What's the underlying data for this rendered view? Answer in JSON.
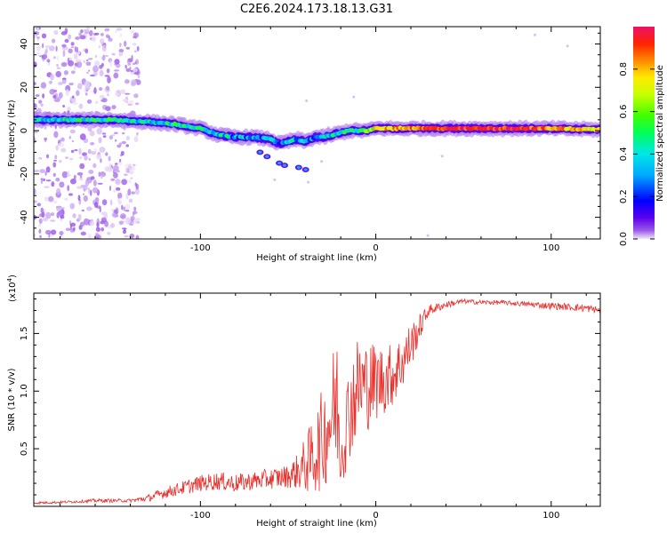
{
  "chart_data": [
    {
      "type": "heatmap",
      "title": "C2E6.2024.173.18.13.G31",
      "xlabel": "Height of straight line (km)",
      "ylabel": "Frequency (Hz)",
      "xlim": [
        -195,
        128
      ],
      "ylim": [
        -50,
        48
      ],
      "x_ticks": [
        -100,
        0,
        100
      ],
      "y_ticks": [
        -40,
        -20,
        0,
        20,
        40
      ],
      "colorbar": {
        "label": "Normalized spectral amplitude",
        "range": [
          0.0,
          1.0
        ],
        "ticks": [
          "0.0",
          "0.2",
          "0.4",
          "0.6",
          "0.8"
        ],
        "tick_values": [
          0.0,
          0.2,
          0.4,
          0.6,
          0.8
        ],
        "colors": [
          "#f2eaf8",
          "#9b59e8",
          "#5b00ee",
          "#0000ff",
          "#00a8ff",
          "#00e6e6",
          "#00ff5a",
          "#40ff00",
          "#c8ff00",
          "#ffea00",
          "#ff8a00",
          "#ff2200",
          "#ee1166"
        ]
      },
      "ridge": {
        "x": [
          -195,
          -170,
          -150,
          -130,
          -115,
          -100,
          -90,
          -80,
          -70,
          -60,
          -55,
          -50,
          -45,
          -40,
          -35,
          -30,
          -25,
          -20,
          -15,
          -10,
          -5,
          0,
          10,
          20,
          40,
          60,
          80,
          100,
          128
        ],
        "freq": [
          5,
          5,
          5,
          4,
          3,
          1,
          -2,
          -3,
          -3,
          -4,
          -6,
          -5,
          -4,
          -5,
          -3,
          -3,
          -2,
          -1,
          0,
          0,
          0,
          1,
          1,
          1,
          1,
          1,
          1,
          1,
          0.5
        ],
        "amplitude": [
          0.35,
          0.45,
          0.45,
          0.4,
          0.45,
          0.45,
          0.4,
          0.35,
          0.35,
          0.35,
          0.3,
          0.35,
          0.35,
          0.3,
          0.35,
          0.35,
          0.4,
          0.45,
          0.5,
          0.5,
          0.55,
          0.7,
          0.8,
          0.85,
          0.9,
          0.92,
          0.95,
          0.85,
          0.7
        ]
      }
    },
    {
      "type": "line",
      "xlabel": "Height of straight line (km)",
      "ylabel": "SNR (10 * v/v)",
      "y_multiplier": "(x10",
      "y_exponent": "4",
      "xlim": [
        -195,
        128
      ],
      "ylim": [
        0,
        1.85
      ],
      "x_ticks": [
        -100,
        0,
        100
      ],
      "y_ticks": [
        "0.5",
        "1.0",
        "1.5"
      ],
      "y_tick_values": [
        0.5,
        1.0,
        1.5
      ],
      "color": "#e8302c",
      "x": [
        -195,
        -180,
        -160,
        -140,
        -130,
        -120,
        -110,
        -100,
        -90,
        -80,
        -70,
        -60,
        -50,
        -45,
        -40,
        -35,
        -30,
        -25,
        -22,
        -20,
        -15,
        -10,
        -5,
        0,
        5,
        10,
        15,
        20,
        25,
        30,
        40,
        50,
        60,
        70,
        80,
        90,
        100,
        110,
        120,
        128
      ],
      "y": [
        0.03,
        0.035,
        0.05,
        0.05,
        0.07,
        0.12,
        0.16,
        0.2,
        0.22,
        0.2,
        0.22,
        0.24,
        0.26,
        0.3,
        0.36,
        0.45,
        0.6,
        0.8,
        0.9,
        0.45,
        0.85,
        1.05,
        1.05,
        1.08,
        1.1,
        1.15,
        1.25,
        1.4,
        1.55,
        1.7,
        1.75,
        1.78,
        1.77,
        1.77,
        1.76,
        1.75,
        1.74,
        1.73,
        1.72,
        1.7
      ],
      "noise": [
        0.01,
        0.01,
        0.015,
        0.015,
        0.03,
        0.05,
        0.06,
        0.07,
        0.08,
        0.08,
        0.08,
        0.09,
        0.1,
        0.15,
        0.25,
        0.35,
        0.45,
        0.55,
        0.6,
        0.3,
        0.45,
        0.45,
        0.4,
        0.35,
        0.3,
        0.28,
        0.25,
        0.2,
        0.12,
        0.05,
        0.03,
        0.02,
        0.02,
        0.02,
        0.02,
        0.025,
        0.03,
        0.03,
        0.035,
        0.03
      ]
    }
  ]
}
